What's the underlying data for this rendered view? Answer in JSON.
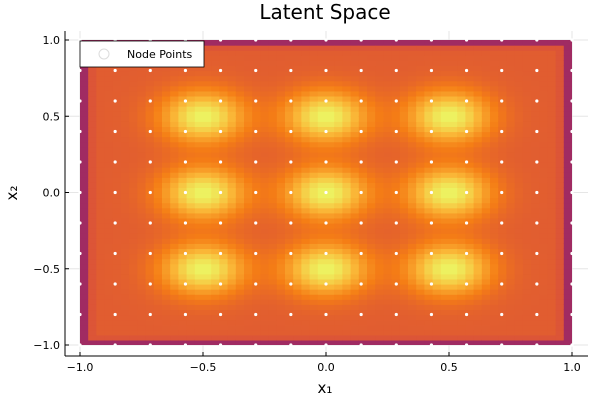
{
  "chart_data": {
    "type": "heatmap",
    "title": "Latent Space",
    "xlabel": "x₁",
    "ylabel": "x₂",
    "xlim": [
      -1.0,
      1.0
    ],
    "ylim": [
      -1.0,
      1.0
    ],
    "xticks": [
      -1.0,
      -0.5,
      0.0,
      0.5,
      1.0
    ],
    "yticks": [
      -1.0,
      -0.5,
      0.0,
      0.5,
      1.0
    ],
    "xtick_labels": [
      "−1.0",
      "−0.5",
      "0.0",
      "0.5",
      "1.0"
    ],
    "ytick_labels": [
      "−1.0",
      "−0.5",
      "0.0",
      "0.5",
      "1.0"
    ],
    "grid": true,
    "legend": {
      "placement": "top-left",
      "entries": [
        "Node Points"
      ]
    },
    "colormap": "inferno-like",
    "peaks": [
      {
        "x": -0.5,
        "y": 0.5
      },
      {
        "x": 0.0,
        "y": 0.5
      },
      {
        "x": 0.5,
        "y": 0.5
      },
      {
        "x": -0.5,
        "y": 0.0
      },
      {
        "x": 0.0,
        "y": 0.0
      },
      {
        "x": 0.5,
        "y": 0.0
      },
      {
        "x": -0.5,
        "y": -0.5
      },
      {
        "x": 0.0,
        "y": -0.5
      },
      {
        "x": 0.5,
        "y": -0.5
      }
    ],
    "node_series": {
      "name": "Node Points",
      "color": "#ffffff",
      "x": [
        -1.0,
        -0.8571,
        -0.7143,
        -0.5714,
        -0.4286,
        -0.2857,
        -0.1429,
        0.0,
        0.1429,
        0.2857,
        0.4286,
        0.5714,
        0.7143,
        0.8571,
        1.0
      ],
      "y": [
        -1.0,
        -0.8,
        -0.6,
        -0.4,
        -0.2,
        0.0,
        0.2,
        0.4,
        0.6,
        0.8,
        1.0
      ]
    }
  }
}
